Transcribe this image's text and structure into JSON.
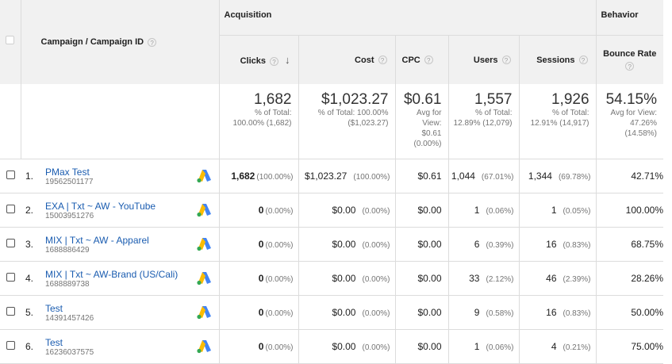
{
  "header": {
    "campaign_col": "Campaign / Campaign ID",
    "help_glyph": "?",
    "groups": {
      "acquisition": "Acquisition",
      "behavior": "Behavior"
    },
    "columns": {
      "clicks": "Clicks",
      "cost": "Cost",
      "cpc": "CPC",
      "users": "Users",
      "sessions": "Sessions",
      "bounce_rate": "Bounce Rate"
    },
    "sort_arrow": "↓"
  },
  "totals": {
    "clicks": {
      "value": "1,682",
      "sub1": "% of Total:",
      "sub2": "100.00% (1,682)"
    },
    "cost": {
      "value": "$1,023.27",
      "sub1": "% of Total: 100.00%",
      "sub2": "($1,023.27)"
    },
    "cpc": {
      "value": "$0.61",
      "sub1": "Avg for",
      "sub2": "View:",
      "sub3": "$0.61",
      "sub4": "(0.00%)"
    },
    "users": {
      "value": "1,557",
      "sub1": "% of Total:",
      "sub2": "12.89% (12,079)"
    },
    "sessions": {
      "value": "1,926",
      "sub1": "% of Total:",
      "sub2": "12.91% (14,917)"
    },
    "bounce_rate": {
      "value": "54.15%",
      "sub1": "Avg for View:",
      "sub2": "47.26%",
      "sub3": "(14.58%)"
    }
  },
  "rows": [
    {
      "index": "1.",
      "name": "PMax Test",
      "id": "19562501177",
      "clicks": "1,682",
      "clicks_pct": "(100.00%)",
      "cost": "$1,023.27",
      "cost_pct": "(100.00%)",
      "cpc": "$0.61",
      "users": "1,044",
      "users_pct": "(67.01%)",
      "sessions": "1,344",
      "sessions_pct": "(69.78%)",
      "bounce": "42.71%"
    },
    {
      "index": "2.",
      "name": "EXA | Txt ~ AW - YouTube",
      "id": "15003951276",
      "clicks": "0",
      "clicks_pct": "(0.00%)",
      "cost": "$0.00",
      "cost_pct": "(0.00%)",
      "cpc": "$0.00",
      "users": "1",
      "users_pct": "(0.06%)",
      "sessions": "1",
      "sessions_pct": "(0.05%)",
      "bounce": "100.00%"
    },
    {
      "index": "3.",
      "name": "MIX | Txt ~ AW - Apparel",
      "id": "1688886429",
      "clicks": "0",
      "clicks_pct": "(0.00%)",
      "cost": "$0.00",
      "cost_pct": "(0.00%)",
      "cpc": "$0.00",
      "users": "6",
      "users_pct": "(0.39%)",
      "sessions": "16",
      "sessions_pct": "(0.83%)",
      "bounce": "68.75%"
    },
    {
      "index": "4.",
      "name": "MIX | Txt ~ AW-Brand (US/Cali)",
      "id": "1688889738",
      "clicks": "0",
      "clicks_pct": "(0.00%)",
      "cost": "$0.00",
      "cost_pct": "(0.00%)",
      "cpc": "$0.00",
      "users": "33",
      "users_pct": "(2.12%)",
      "sessions": "46",
      "sessions_pct": "(2.39%)",
      "bounce": "28.26%"
    },
    {
      "index": "5.",
      "name": "Test",
      "id": "14391457426",
      "clicks": "0",
      "clicks_pct": "(0.00%)",
      "cost": "$0.00",
      "cost_pct": "(0.00%)",
      "cpc": "$0.00",
      "users": "9",
      "users_pct": "(0.58%)",
      "sessions": "16",
      "sessions_pct": "(0.83%)",
      "bounce": "50.00%"
    },
    {
      "index": "6.",
      "name": "Test",
      "id": "16236037575",
      "clicks": "0",
      "clicks_pct": "(0.00%)",
      "cost": "$0.00",
      "cost_pct": "(0.00%)",
      "cpc": "$0.00",
      "users": "1",
      "users_pct": "(0.06%)",
      "sessions": "4",
      "sessions_pct": "(0.21%)",
      "bounce": "75.00%"
    }
  ],
  "icons": {
    "row_icon": "google-ads-icon",
    "help": "help-circle-icon",
    "sort": "sort-down-arrow-icon"
  },
  "colors": {
    "link": "#1a5cb0",
    "ads_blue": "#4285f4",
    "ads_yellow": "#fbbc04",
    "ads_green": "#34a853"
  }
}
